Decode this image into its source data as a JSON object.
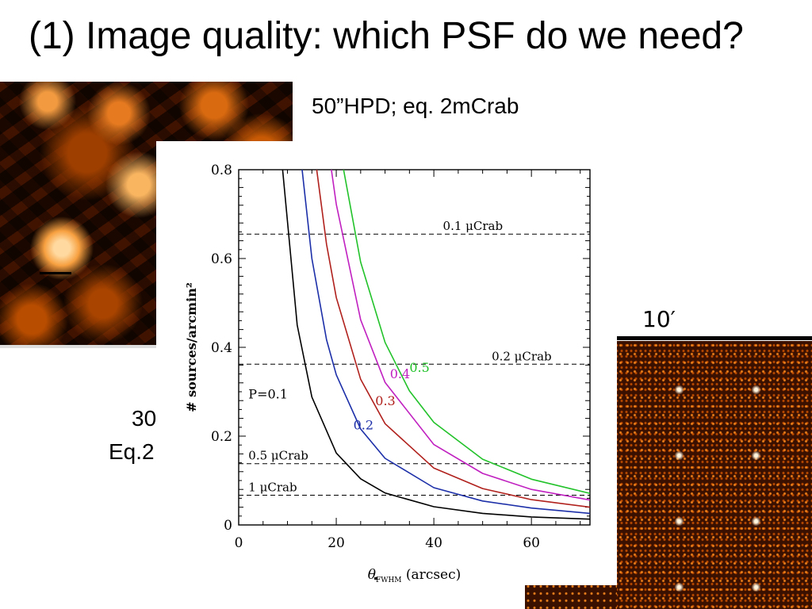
{
  "slide": {
    "title": "(1) Image quality: which PSF do we need?",
    "hpd_caption": "50”HPD; eq. 2mCrab",
    "left_caption_line1": "30",
    "left_caption_line2": "Eq.2",
    "scale_label": "10′"
  },
  "chart_data": {
    "type": "line",
    "xlabel": "θFWHM (arcsec)",
    "ylabel": "# sources/arcmin²",
    "xlim": [
      0,
      72
    ],
    "ylim": [
      0,
      0.8
    ],
    "x_ticks": [
      "0",
      "20",
      "40",
      "60"
    ],
    "y_ticks": [
      "0",
      "0.2",
      "0.4",
      "0.6",
      "0.8"
    ],
    "grid": false,
    "series": [
      {
        "name": "P=0.1",
        "color": "#000000",
        "x": [
          9,
          12,
          15,
          20,
          25,
          30,
          40,
          50,
          60,
          72
        ],
        "y": [
          0.8,
          0.45,
          0.288,
          0.162,
          0.104,
          0.072,
          0.041,
          0.026,
          0.018,
          0.013
        ]
      },
      {
        "name": "0.2",
        "color": "#1c2fa8",
        "x": [
          13,
          15,
          18,
          20,
          25,
          30,
          40,
          50,
          60,
          72
        ],
        "y": [
          0.8,
          0.6,
          0.417,
          0.338,
          0.216,
          0.15,
          0.084,
          0.054,
          0.038,
          0.026
        ]
      },
      {
        "name": "0.3",
        "color": "#b0201c",
        "x": [
          16,
          18,
          20,
          25,
          30,
          40,
          50,
          60,
          72
        ],
        "y": [
          0.8,
          0.632,
          0.512,
          0.328,
          0.228,
          0.128,
          0.082,
          0.057,
          0.04
        ]
      },
      {
        "name": "0.4",
        "color": "#c020c0",
        "x": [
          19,
          20,
          25,
          30,
          40,
          50,
          60,
          72
        ],
        "y": [
          0.8,
          0.722,
          0.462,
          0.321,
          0.181,
          0.116,
          0.08,
          0.056
        ]
      },
      {
        "name": "0.5",
        "color": "#22c22a",
        "x": [
          21.5,
          25,
          30,
          35,
          40,
          50,
          60,
          72
        ],
        "y": [
          0.8,
          0.592,
          0.411,
          0.302,
          0.231,
          0.148,
          0.103,
          0.071
        ]
      }
    ],
    "hlines": [
      {
        "label": "0.1 μCrab",
        "y": 0.655
      },
      {
        "label": "0.2 μCrab",
        "y": 0.362
      },
      {
        "label": "0.5 μCrab",
        "y": 0.138
      },
      {
        "label": "1 μCrab",
        "y": 0.067
      }
    ]
  }
}
